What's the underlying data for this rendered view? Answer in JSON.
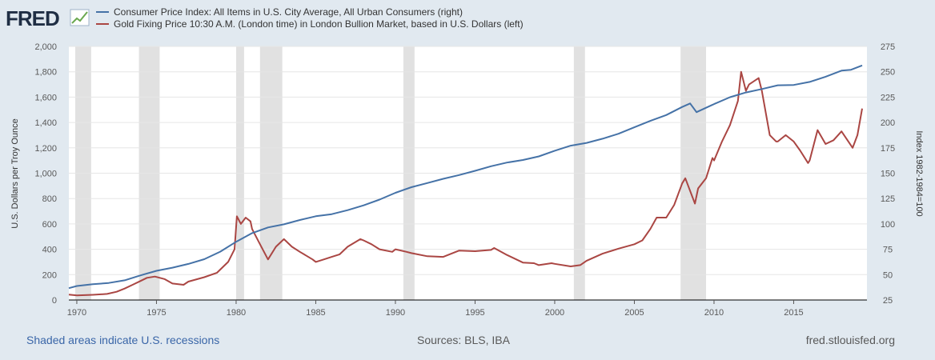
{
  "logo": {
    "text": "FRED"
  },
  "chart_data": {
    "type": "line",
    "legend_position": "top-left",
    "legend": [
      {
        "name": "Consumer Price Index: All Items in U.S. City Average, All Urban Consumers (right)",
        "color": "#4572a7"
      },
      {
        "name": "Gold Fixing Price 10:30 A.M. (London time) in London Bullion Market, based in U.S. Dollars (left)",
        "color": "#aa4643"
      }
    ],
    "xlim": [
      1969.5,
      2019.6
    ],
    "x_ticks": [
      "1970",
      "1975",
      "1980",
      "1985",
      "1990",
      "1995",
      "2000",
      "2005",
      "2010",
      "2015"
    ],
    "left_axis": {
      "label": "U.S. Dollars per Troy Ounce",
      "ylim": [
        0,
        2000
      ],
      "ticks": [
        "0",
        "200",
        "400",
        "600",
        "800",
        "1,000",
        "1,200",
        "1,400",
        "1,600",
        "1,800",
        "2,000"
      ]
    },
    "right_axis": {
      "label": "Index 1982-1984=100",
      "ylim": [
        25,
        275
      ],
      "ticks": [
        "25",
        "50",
        "75",
        "100",
        "125",
        "150",
        "175",
        "200",
        "225",
        "250",
        "275"
      ]
    },
    "recessions": [
      [
        1969.9,
        1970.9
      ],
      [
        1973.9,
        1975.2
      ],
      [
        1980.0,
        1980.5
      ],
      [
        1981.5,
        1982.9
      ],
      [
        1990.5,
        1991.2
      ],
      [
        2001.2,
        2001.9
      ],
      [
        2007.9,
        2009.5
      ]
    ],
    "series": [
      {
        "name": "CPI",
        "axis": "right",
        "x": [
          1969.5,
          1970,
          1971,
          1972,
          1973,
          1974,
          1975,
          1976,
          1977,
          1978,
          1979,
          1980,
          1981,
          1982,
          1983,
          1984,
          1985,
          1986,
          1987,
          1988,
          1989,
          1990,
          1991,
          1992,
          1993,
          1994,
          1995,
          1996,
          1997,
          1998,
          1999,
          2000,
          2001,
          2002,
          2003,
          2004,
          2005,
          2006,
          2007,
          2008,
          2008.5,
          2008.9,
          2009.5,
          2010,
          2011,
          2012,
          2013,
          2014,
          2015,
          2016,
          2017,
          2018,
          2018.6,
          2019.3
        ],
        "values": [
          36.7,
          38.8,
          40.5,
          41.8,
          44.4,
          49.3,
          53.8,
          56.9,
          60.6,
          65.2,
          72.6,
          82.4,
          90.9,
          96.5,
          99.6,
          103.9,
          107.6,
          109.6,
          113.6,
          118.3,
          124.0,
          130.7,
          136.2,
          140.3,
          144.5,
          148.2,
          152.4,
          156.9,
          160.5,
          163.0,
          166.6,
          172.2,
          177.1,
          179.9,
          184.0,
          188.9,
          195.3,
          201.6,
          207.3,
          215.3,
          218.8,
          210.2,
          214.5,
          218.1,
          224.9,
          229.6,
          233.0,
          236.7,
          237.0,
          240.0,
          245.1,
          251.1,
          252.0,
          256.2
        ]
      },
      {
        "name": "Gold",
        "axis": "left",
        "x": [
          1969.5,
          1970,
          1971,
          1971.9,
          1972.5,
          1973,
          1973.5,
          1974,
          1974.4,
          1974.9,
          1975.5,
          1976,
          1976.7,
          1977,
          1978,
          1978.8,
          1979,
          1979.5,
          1979.9,
          1980.05,
          1980.3,
          1980.6,
          1980.9,
          1981,
          1981.5,
          1982,
          1982.5,
          1983,
          1983.5,
          1984,
          1984.8,
          1985,
          1985.5,
          1986,
          1986.5,
          1987,
          1987.8,
          1988,
          1988.5,
          1989,
          1989.8,
          1990,
          1990.7,
          1991,
          1992,
          1993,
          1993.7,
          1994,
          1995,
          1996,
          1996.2,
          1997,
          1998,
          1998.7,
          1999,
          1999.8,
          2000,
          2001,
          2001.6,
          2002,
          2003,
          2004,
          2005,
          2005.5,
          2006,
          2006.4,
          2007,
          2007.5,
          2008,
          2008.2,
          2008.8,
          2009,
          2009.5,
          2009.9,
          2010,
          2010.5,
          2011,
          2011.5,
          2011.7,
          2012,
          2012.2,
          2012.8,
          2013,
          2013.5,
          2013.9,
          2014,
          2014.5,
          2015,
          2015.4,
          2015.9,
          2016,
          2016.5,
          2017,
          2017.5,
          2018,
          2018.7,
          2019,
          2019.3
        ],
        "values": [
          42,
          36,
          41,
          48,
          65,
          90,
          120,
          150,
          175,
          185,
          165,
          130,
          120,
          145,
          180,
          215,
          240,
          300,
          400,
          660,
          600,
          650,
          620,
          560,
          440,
          320,
          420,
          480,
          420,
          380,
          320,
          300,
          320,
          340,
          360,
          420,
          480,
          470,
          440,
          400,
          380,
          400,
          380,
          370,
          345,
          340,
          375,
          390,
          385,
          395,
          410,
          355,
          295,
          290,
          275,
          290,
          285,
          265,
          275,
          310,
          365,
          405,
          440,
          470,
          560,
          650,
          650,
          750,
          920,
          960,
          760,
          880,
          960,
          1120,
          1100,
          1250,
          1380,
          1570,
          1800,
          1650,
          1700,
          1750,
          1650,
          1300,
          1250,
          1250,
          1300,
          1250,
          1180,
          1080,
          1100,
          1340,
          1230,
          1260,
          1330,
          1200,
          1300,
          1510
        ]
      }
    ]
  },
  "footer": {
    "recession_note": "Shaded areas indicate U.S. recessions",
    "sources": "Sources: BLS, IBA",
    "site": "fred.stlouisfed.org"
  }
}
